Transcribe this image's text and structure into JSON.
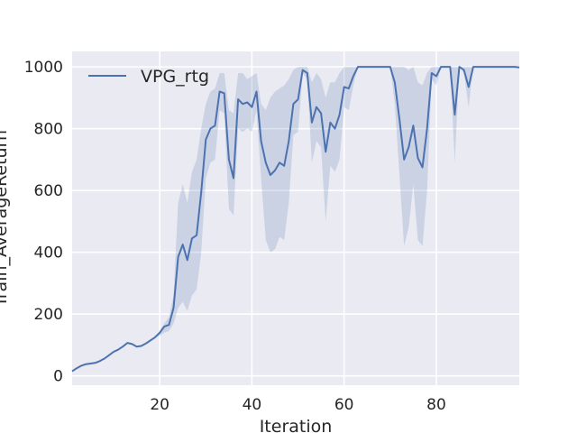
{
  "chart_data": {
    "type": "line",
    "title": "",
    "xlabel": "Iteration",
    "ylabel": "Train_AverageReturn",
    "xlim": [
      1,
      98
    ],
    "ylim": [
      -30,
      1050
    ],
    "xticks": [
      20,
      40,
      60,
      80
    ],
    "yticks": [
      0,
      200,
      400,
      600,
      800,
      1000
    ],
    "grid": true,
    "legend_position": "top-left",
    "colors": {
      "line": "#4c72b0",
      "band": "#4c72b0",
      "background": "#eaeaf2",
      "grid": "#ffffff"
    },
    "series": [
      {
        "name": "VPG_rtg",
        "x": [
          1,
          2,
          3,
          4,
          5,
          6,
          7,
          8,
          9,
          10,
          11,
          12,
          13,
          14,
          15,
          16,
          17,
          18,
          19,
          20,
          21,
          22,
          23,
          24,
          25,
          26,
          27,
          28,
          29,
          30,
          31,
          32,
          33,
          34,
          35,
          36,
          37,
          38,
          39,
          40,
          41,
          42,
          43,
          44,
          45,
          46,
          47,
          48,
          49,
          50,
          51,
          52,
          53,
          54,
          55,
          56,
          57,
          58,
          59,
          60,
          61,
          62,
          63,
          64,
          65,
          66,
          67,
          68,
          69,
          70,
          71,
          72,
          73,
          74,
          75,
          76,
          77,
          78,
          79,
          80,
          81,
          82,
          83,
          84,
          85,
          86,
          87,
          88,
          89,
          90,
          91,
          92,
          93,
          94,
          95,
          96,
          97,
          98
        ],
        "y": [
          15,
          25,
          33,
          38,
          40,
          42,
          48,
          56,
          67,
          78,
          85,
          95,
          107,
          103,
          95,
          97,
          105,
          115,
          125,
          140,
          160,
          165,
          220,
          385,
          425,
          375,
          445,
          455,
          595,
          765,
          800,
          810,
          920,
          915,
          700,
          640,
          895,
          880,
          885,
          870,
          920,
          760,
          690,
          650,
          665,
          690,
          680,
          760,
          880,
          895,
          990,
          980,
          820,
          870,
          850,
          725,
          820,
          800,
          845,
          935,
          930,
          970,
          1000,
          1000,
          1000,
          1000,
          1000,
          1000,
          1000,
          1000,
          950,
          830,
          700,
          740,
          810,
          705,
          675,
          800,
          980,
          970,
          1000,
          1000,
          1000,
          845,
          1000,
          990,
          935,
          1000,
          1000,
          1000,
          1000,
          1000,
          1000,
          1000,
          1000,
          1000,
          1000,
          998
        ],
        "y_upper": [
          15,
          25,
          33,
          38,
          40,
          42,
          48,
          56,
          67,
          78,
          85,
          95,
          107,
          103,
          95,
          97,
          105,
          115,
          125,
          145,
          170,
          190,
          260,
          560,
          620,
          560,
          660,
          700,
          800,
          880,
          920,
          930,
          980,
          980,
          860,
          850,
          980,
          980,
          960,
          970,
          980,
          880,
          860,
          900,
          920,
          930,
          940,
          960,
          990,
          1000,
          1000,
          1000,
          950,
          980,
          960,
          900,
          950,
          950,
          980,
          1000,
          1000,
          1000,
          1000,
          1000,
          1000,
          1000,
          1000,
          1000,
          1000,
          1000,
          1000,
          1000,
          1000,
          990,
          1000,
          950,
          940,
          980,
          1000,
          1000,
          1000,
          1000,
          1000,
          1000,
          1000,
          1000,
          1000,
          1000,
          1000,
          1000,
          1000,
          1000,
          1000,
          1000,
          1000,
          1000,
          1000,
          1000
        ],
        "y_lower": [
          15,
          25,
          33,
          38,
          40,
          42,
          48,
          56,
          67,
          78,
          85,
          95,
          107,
          103,
          95,
          97,
          105,
          115,
          125,
          130,
          140,
          145,
          170,
          220,
          240,
          210,
          260,
          280,
          400,
          640,
          690,
          700,
          860,
          850,
          540,
          520,
          800,
          790,
          800,
          790,
          860,
          640,
          440,
          400,
          410,
          450,
          440,
          560,
          780,
          790,
          980,
          960,
          690,
          760,
          740,
          500,
          680,
          660,
          700,
          870,
          860,
          940,
          1000,
          1000,
          1000,
          1000,
          1000,
          1000,
          1000,
          1000,
          880,
          650,
          420,
          480,
          620,
          440,
          420,
          600,
          960,
          940,
          1000,
          1000,
          1000,
          690,
          1000,
          980,
          870,
          1000,
          1000,
          1000,
          1000,
          1000,
          1000,
          1000,
          1000,
          1000,
          1000,
          995
        ]
      }
    ]
  }
}
